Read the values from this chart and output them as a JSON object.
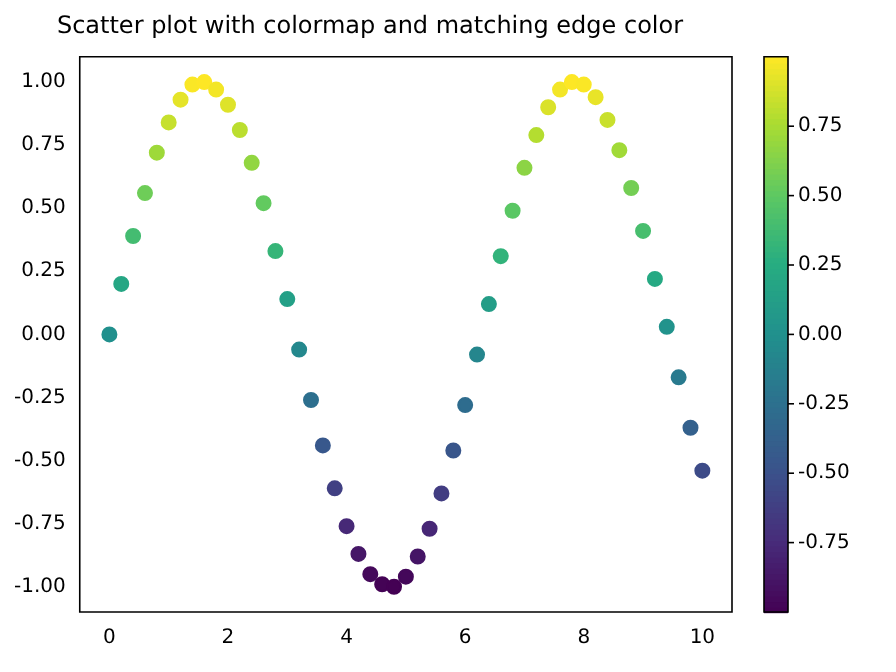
{
  "chart_data": {
    "type": "scatter",
    "title": "Scatter plot with colormap and matching edge color",
    "x": [
      0,
      0.2,
      0.4,
      0.6,
      0.8,
      1,
      1.2,
      1.4,
      1.6,
      1.8,
      2,
      2.2,
      2.4,
      2.6,
      2.8,
      3,
      3.2,
      3.4,
      3.6,
      3.8,
      4,
      4.2,
      4.4,
      4.6,
      4.8,
      5,
      5.2,
      5.4,
      5.6,
      5.8,
      6,
      6.2,
      6.4,
      6.6,
      6.8,
      7,
      7.2,
      7.4,
      7.6,
      7.8,
      8,
      8.2,
      8.4,
      8.6,
      8.8,
      9,
      9.2,
      9.4,
      9.6,
      9.8,
      10
    ],
    "values": [
      0,
      0.2,
      0.39,
      0.56,
      0.72,
      0.84,
      0.93,
      0.99,
      1,
      0.97,
      0.91,
      0.81,
      0.68,
      0.52,
      0.33,
      0.14,
      -0.06,
      -0.26,
      -0.44,
      -0.61,
      -0.76,
      -0.87,
      -0.95,
      -0.99,
      -1,
      -0.96,
      -0.88,
      -0.77,
      -0.63,
      -0.46,
      -0.28,
      -0.08,
      0.12,
      0.31,
      0.49,
      0.66,
      0.79,
      0.9,
      0.97,
      1,
      0.99,
      0.94,
      0.85,
      0.73,
      0.58,
      0.41,
      0.22,
      0.03,
      -0.17,
      -0.37,
      -0.54
    ],
    "cvalues": [
      0,
      0.2,
      0.39,
      0.56,
      0.72,
      0.84,
      0.93,
      0.99,
      1,
      0.97,
      0.91,
      0.81,
      0.68,
      0.52,
      0.33,
      0.14,
      -0.06,
      -0.26,
      -0.44,
      -0.61,
      -0.76,
      -0.87,
      -0.95,
      -0.99,
      -1,
      -0.96,
      -0.88,
      -0.77,
      -0.63,
      -0.46,
      -0.28,
      -0.08,
      0.12,
      0.31,
      0.49,
      0.66,
      0.79,
      0.9,
      0.97,
      1,
      0.99,
      0.94,
      0.85,
      0.73,
      0.58,
      0.41,
      0.22,
      0.03,
      -0.17,
      -0.37,
      -0.54
    ],
    "xlim": [
      -0.5,
      10.5
    ],
    "xticks": [
      0,
      2,
      4,
      6,
      8,
      10
    ],
    "ylim": [
      -1.1,
      1.1
    ],
    "yticks": [
      {
        "value": -1,
        "label": "-1.00"
      },
      {
        "value": -0.75,
        "label": "-0.75"
      },
      {
        "value": -0.5,
        "label": "-0.50"
      },
      {
        "value": -0.25,
        "label": "-0.25"
      },
      {
        "value": 0,
        "label": "0.00"
      },
      {
        "value": 0.25,
        "label": "0.25"
      },
      {
        "value": 0.5,
        "label": "0.50"
      },
      {
        "value": 0.75,
        "label": "0.75"
      },
      {
        "value": 1,
        "label": "1.00"
      }
    ],
    "clim": [
      -1,
      1
    ],
    "cticks": [
      {
        "value": -0.75,
        "label": "-0.75"
      },
      {
        "value": -0.5,
        "label": "-0.50"
      },
      {
        "value": -0.25,
        "label": "-0.25"
      },
      {
        "value": 0,
        "label": "0.00"
      },
      {
        "value": 0.25,
        "label": "0.25"
      },
      {
        "value": 0.5,
        "label": "0.50"
      },
      {
        "value": 0.75,
        "label": "0.75"
      }
    ],
    "marker": "circle",
    "grid": false,
    "legend": false
  }
}
